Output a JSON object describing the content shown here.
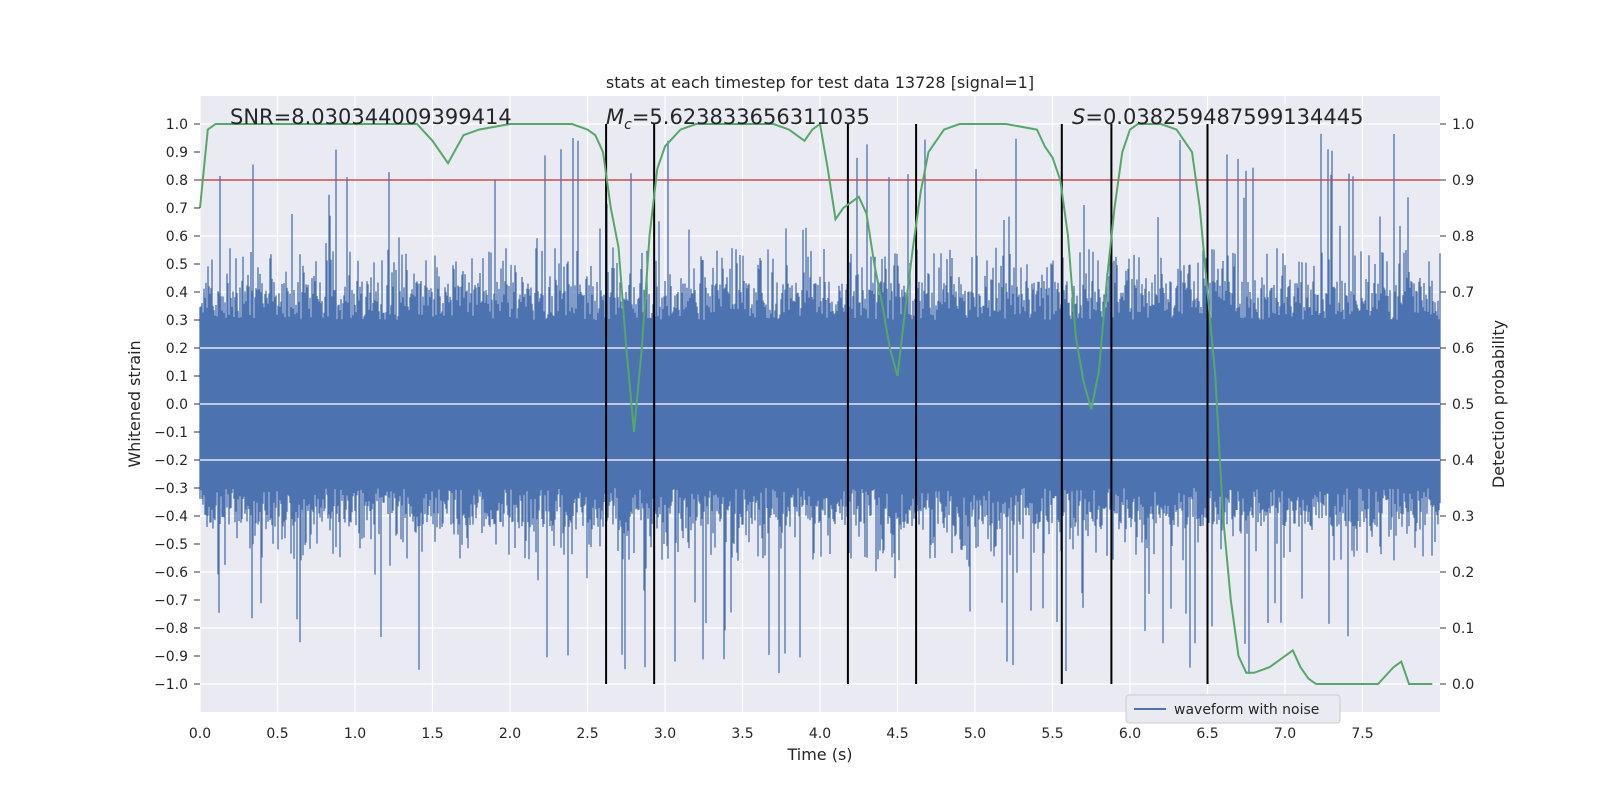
{
  "chart_data": {
    "type": "line",
    "title": "stats at each timestep for test data 13728 [signal=1]",
    "xlabel": "Time (s)",
    "ylabel_left": "Whitened strain",
    "ylabel_right": "Detection probability",
    "xlim": [
      0,
      8
    ],
    "ylim_left": [
      -1.1,
      1.1
    ],
    "ylim_right": [
      -0.05,
      1.05
    ],
    "x_ticks": [
      "0.0",
      "0.5",
      "1.0",
      "1.5",
      "2.0",
      "2.5",
      "3.0",
      "3.5",
      "4.0",
      "4.5",
      "5.0",
      "5.5",
      "6.0",
      "6.5",
      "7.0",
      "7.5"
    ],
    "y_left_ticks": [
      "1.0",
      "0.9",
      "0.8",
      "0.7",
      "0.6",
      "0.5",
      "0.4",
      "0.3",
      "0.2",
      "0.1",
      "0.0",
      "−0.1",
      "−0.2",
      "−0.3",
      "−0.4",
      "−0.5",
      "−0.6",
      "−0.7",
      "−0.8",
      "−0.9",
      "−1.0"
    ],
    "y_right_ticks": [
      "1.0",
      "0.9",
      "0.8",
      "0.7",
      "0.6",
      "0.5",
      "0.4",
      "0.3",
      "0.2",
      "0.1",
      "0.0"
    ],
    "annotations": {
      "snr": "SNR=8.030344009399414",
      "mc": "=5.623833656311035",
      "mc_symbol": "M",
      "mc_sub": "c",
      "s": "=0.038259487599134445",
      "s_symbol": "S"
    },
    "threshold": {
      "value": 0.8,
      "axis": "left",
      "color": "#c44e52"
    },
    "vertical_lines": [
      2.62,
      2.93,
      4.18,
      4.62,
      5.56,
      5.88,
      6.5
    ],
    "waveform": {
      "name": "waveform with noise",
      "color": "#4c72b0",
      "band_amplitude": 0.4,
      "spike_min": 0.45,
      "spike_max": 0.97
    },
    "probability": {
      "name": "Detection probability",
      "color": "#55a868",
      "x": [
        0.0,
        0.05,
        0.1,
        0.2,
        0.3,
        0.5,
        0.8,
        1.0,
        1.2,
        1.4,
        1.5,
        1.6,
        1.7,
        1.8,
        2.0,
        2.2,
        2.4,
        2.5,
        2.55,
        2.6,
        2.65,
        2.7,
        2.75,
        2.8,
        2.85,
        2.9,
        2.95,
        3.0,
        3.1,
        3.2,
        3.3,
        3.5,
        3.7,
        3.8,
        3.9,
        3.95,
        4.0,
        4.05,
        4.1,
        4.15,
        4.2,
        4.25,
        4.3,
        4.35,
        4.4,
        4.45,
        4.5,
        4.55,
        4.6,
        4.65,
        4.7,
        4.8,
        4.9,
        5.0,
        5.2,
        5.4,
        5.45,
        5.5,
        5.55,
        5.6,
        5.65,
        5.7,
        5.75,
        5.8,
        5.85,
        5.9,
        5.95,
        6.0,
        6.05,
        6.1,
        6.2,
        6.3,
        6.4,
        6.45,
        6.5,
        6.55,
        6.6,
        6.65,
        6.7,
        6.75,
        6.8,
        6.9,
        7.0,
        7.05,
        7.1,
        7.15,
        7.2,
        7.3,
        7.4,
        7.5,
        7.6,
        7.7,
        7.75,
        7.8,
        7.85,
        7.9,
        7.95
      ],
      "y": [
        0.85,
        0.99,
        1.0,
        1.0,
        1.0,
        1.0,
        1.0,
        1.0,
        1.0,
        1.0,
        0.97,
        0.93,
        0.98,
        0.99,
        1.0,
        1.0,
        1.0,
        0.99,
        0.98,
        0.95,
        0.85,
        0.78,
        0.6,
        0.45,
        0.6,
        0.8,
        0.92,
        0.96,
        0.99,
        1.0,
        1.0,
        1.0,
        1.0,
        0.99,
        0.97,
        0.99,
        1.0,
        0.92,
        0.83,
        0.85,
        0.86,
        0.87,
        0.84,
        0.75,
        0.68,
        0.6,
        0.55,
        0.67,
        0.78,
        0.88,
        0.95,
        0.99,
        1.0,
        1.0,
        1.0,
        0.99,
        0.96,
        0.94,
        0.9,
        0.8,
        0.62,
        0.54,
        0.49,
        0.56,
        0.72,
        0.85,
        0.95,
        0.99,
        1.0,
        1.0,
        1.0,
        0.99,
        0.95,
        0.85,
        0.7,
        0.55,
        0.3,
        0.15,
        0.05,
        0.02,
        0.02,
        0.03,
        0.05,
        0.06,
        0.03,
        0.01,
        0.0,
        0.0,
        0.0,
        0.0,
        0.0,
        0.03,
        0.04,
        0.0,
        0.0,
        0.0,
        0.0
      ]
    },
    "legend": {
      "entries": [
        "waveform with noise"
      ],
      "placement": "bottom-right"
    },
    "grid": true
  },
  "colors": {
    "plot_background": "#eaeaf2",
    "grid": "#ffffff",
    "waveform": "#4c72b0",
    "probability": "#55a868",
    "threshold": "#c44e52",
    "vertical_line": "#000000"
  }
}
